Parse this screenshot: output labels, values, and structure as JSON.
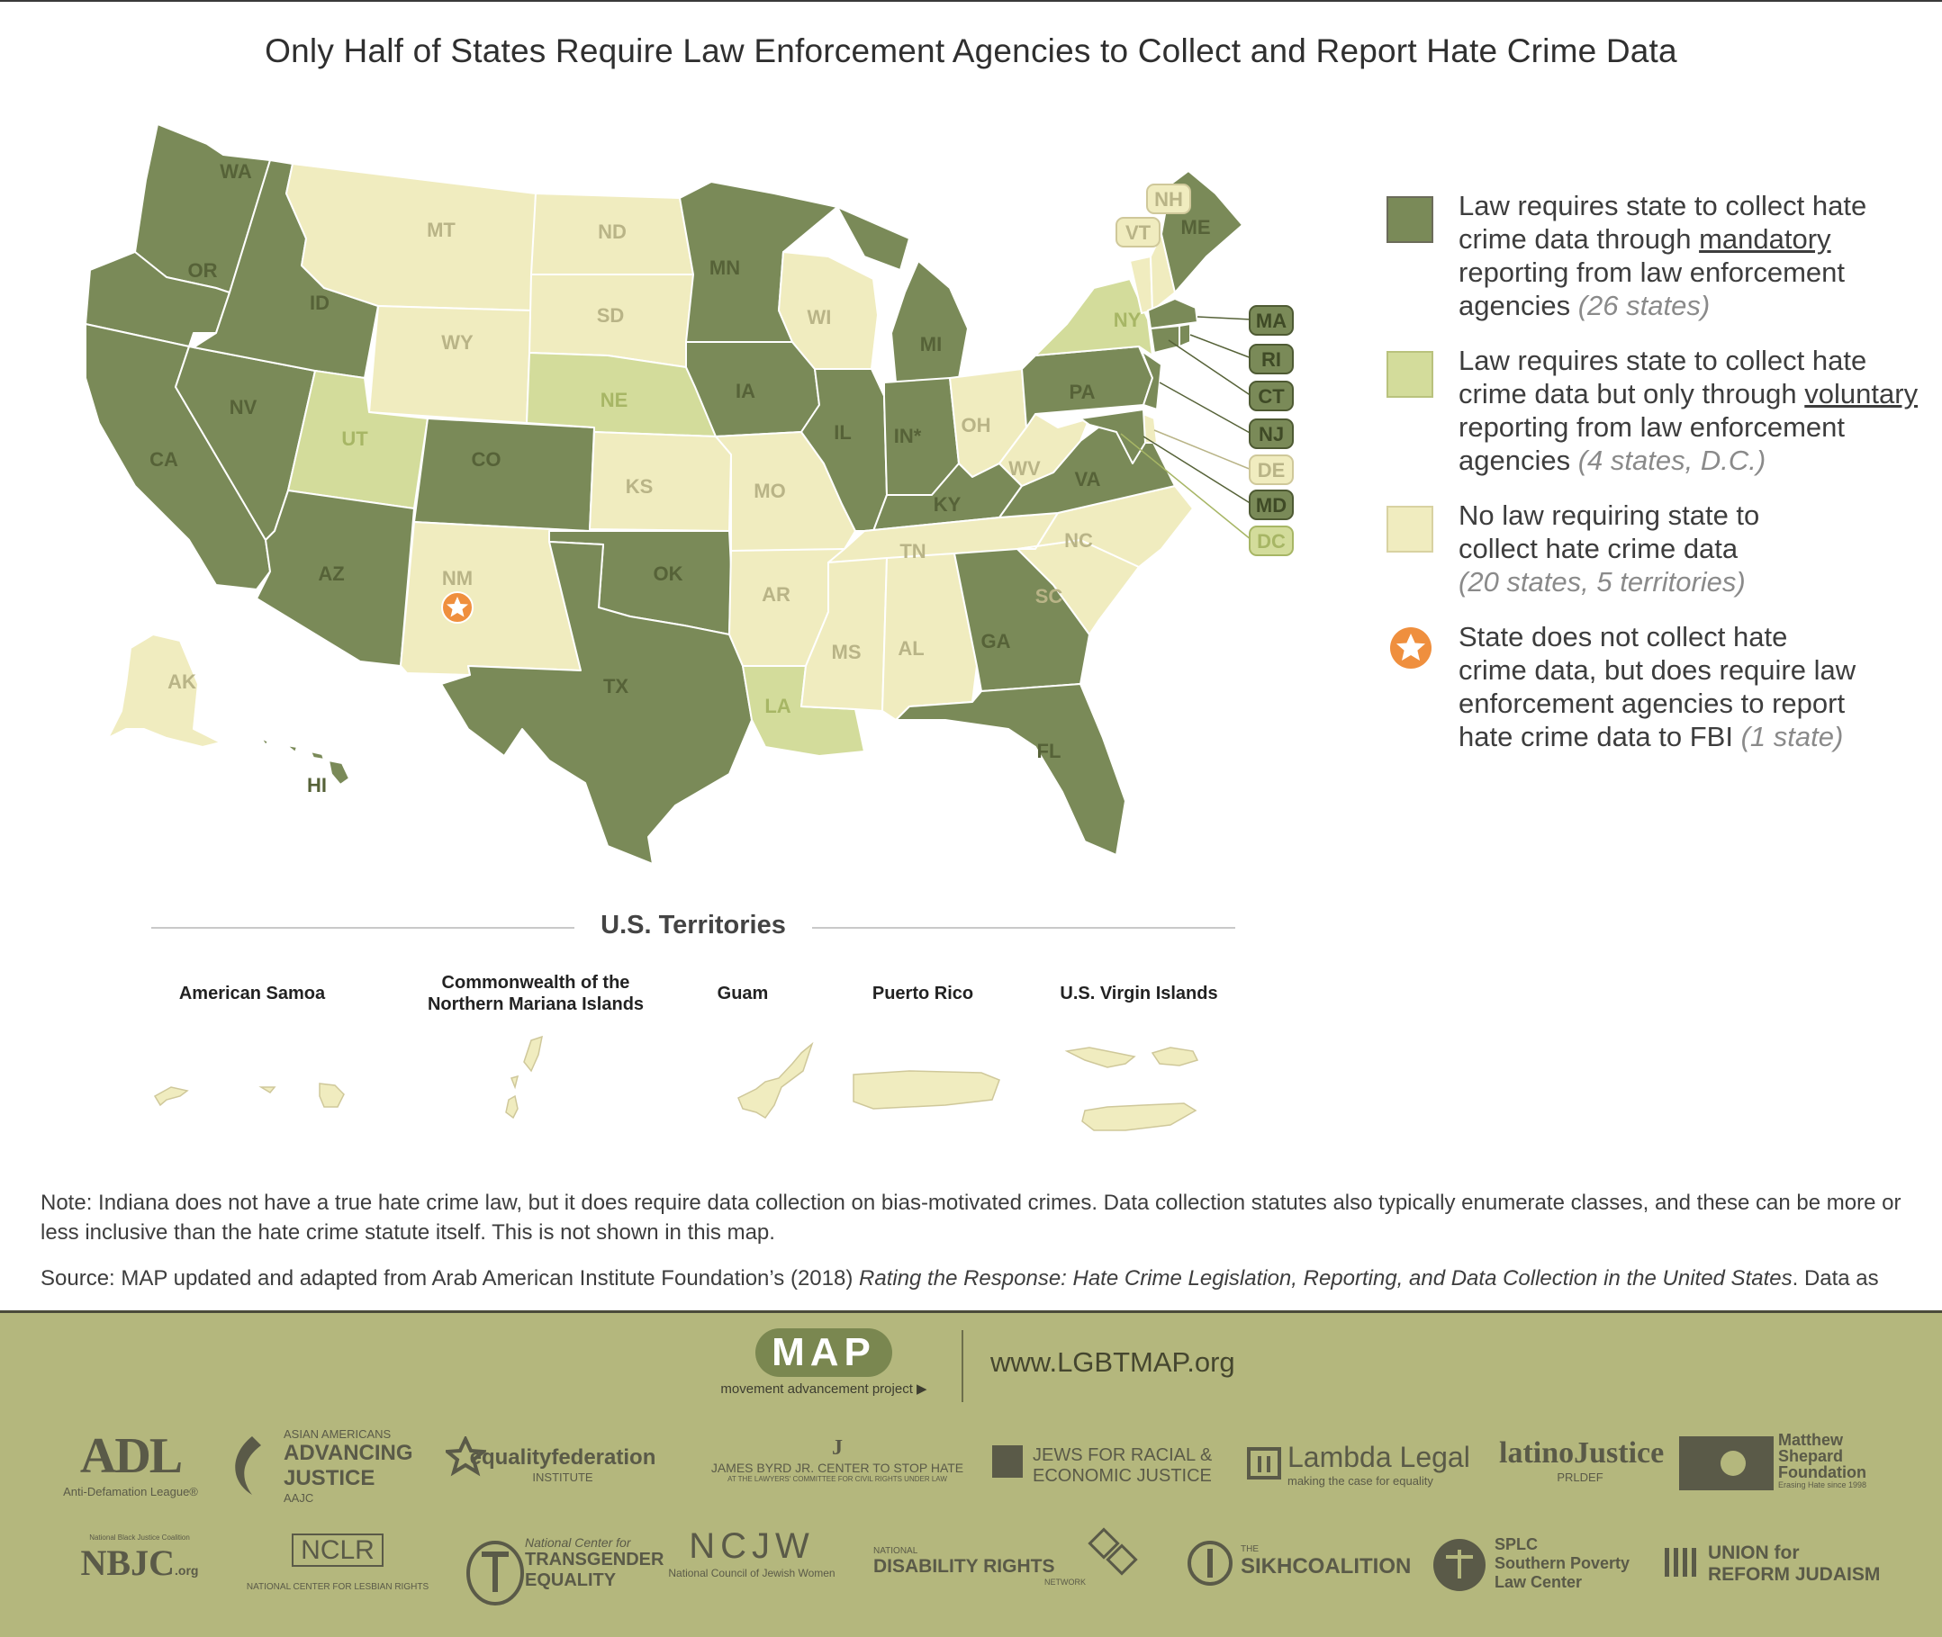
{
  "title": "Only Half of States Require Law Enforcement Agencies to Collect and Report Hate Crime Data",
  "colors": {
    "mandatory": "#7a8a58",
    "voluntary": "#d3dc9b",
    "none": "#f0ecbf",
    "star": "#ef8f3e"
  },
  "states": {
    "WA": "WA",
    "OR": "OR",
    "CA": "CA",
    "NV": "NV",
    "ID": "ID",
    "MT": "MT",
    "WY": "WY",
    "UT": "UT",
    "AZ": "AZ",
    "CO": "CO",
    "NM": "NM",
    "ND": "ND",
    "SD": "SD",
    "NE": "NE",
    "KS": "KS",
    "OK": "OK",
    "TX": "TX",
    "MN": "MN",
    "IA": "IA",
    "MO": "MO",
    "AR": "AR",
    "LA": "LA",
    "WI": "WI",
    "IL": "IL",
    "MS": "MS",
    "MI": "MI",
    "IN": "IN*",
    "KY": "KY",
    "TN": "TN",
    "AL": "AL",
    "GA": "GA",
    "FL": "FL",
    "OH": "OH",
    "WV": "WV",
    "VA": "VA",
    "NC": "NC",
    "SC": "SC",
    "PA": "PA",
    "NY": "NY",
    "VT": "VT",
    "NH": "NH",
    "ME": "ME",
    "MA": "MA",
    "RI": "RI",
    "CT": "CT",
    "NJ": "NJ",
    "DE": "DE",
    "MD": "MD",
    "DC": "DC",
    "AK": "AK",
    "HI": "HI"
  },
  "legend": [
    {
      "lines": [
        "Law requires state to collect hate",
        "crime data through "
      ],
      "underline": "mandatory",
      "rest": [
        "reporting from law enforcement",
        "agencies "
      ],
      "count": "(26 states)"
    },
    {
      "lines": [
        "Law requires state to collect hate",
        "crime data but only through "
      ],
      "underline": "voluntary",
      "rest": [
        "reporting from law enforcement",
        "agencies "
      ],
      "count": "(4 states, D.C.)"
    },
    {
      "text1": "No law requiring state to",
      "text2": "collect hate crime data",
      "count": "(20 states, 5 territories)"
    },
    {
      "text1": "State does not collect hate",
      "text2": "crime data, but does require law",
      "text3": "enforcement agencies to report",
      "text4": "hate crime data to FBI ",
      "count": "(1 state)"
    }
  ],
  "territories": {
    "heading": "U.S. Territories",
    "items": [
      "American Samoa",
      "Commonwealth of the Northern Mariana Islands",
      "Guam",
      "Puerto Rico",
      "U.S. Virgin Islands"
    ],
    "cnmi_line1": "Commonwealth of the",
    "cnmi_line2": "Northern Mariana Islands"
  },
  "note": "Note: Indiana does not have a true hate crime law, but it does require data collection on bias-motivated crimes. Data collection statutes also typically enumerate classes, and these can be more or less inclusive than the hate crime statute itself. This is not shown in this map.",
  "source_prefix": "Source: MAP updated and adapted from Arab American Institute Foundation’s (2018) ",
  "source_italic": "Rating the Response: Hate Crime Legislation, Reporting, and Data Collection in the United States",
  "source_suffix": ". Data as",
  "footer": {
    "logo": "MAP",
    "logo_sub": "movement advancement project ▶",
    "url": "www.LGBTMAP.org",
    "partners": {
      "adl": "ADL",
      "adl_sub": "Anti-Defamation League®",
      "aaj_1": "ASIAN AMERICANS",
      "aaj_2": "ADVANCING",
      "aaj_3": "JUSTICE",
      "aaj_4": "AAJC",
      "ef": "equalityfederation",
      "ef_sub": "INSTITUTE",
      "byrd": "JAMES BYRD JR. CENTER TO STOP HATE",
      "byrd_sub": "AT THE LAWYERS' COMMITTEE FOR CIVIL RIGHTS UNDER LAW",
      "jfrej_1": "JEWS FOR RACIAL &",
      "jfrej_2": "ECONOMIC JUSTICE",
      "lambda": "Lambda Legal",
      "lambda_sub": "making the case for equality",
      "lj": "latinoJustice",
      "lj_sub": "PRLDEF",
      "msf_1": "Matthew",
      "msf_2": "Shepard",
      "msf_3": "Foundation",
      "msf_sub": "Erasing Hate since 1998",
      "nbjc": "NBJC",
      "nbjc_top": "National Black Justice Coalition",
      "nbjc_org": ".org",
      "nclr": "NCLR",
      "nclr_sub": "NATIONAL CENTER FOR LESBIAN RIGHTS",
      "ncte_1": "National Center for",
      "ncte_2": "TRANSGENDER",
      "ncte_3": "EQUALITY",
      "ncjw": "NCJW",
      "ncjw_sub": "National Council of Jewish Women",
      "drn_1": "NATIONAL",
      "drn_2": "DISABILITY RIGHTS",
      "drn_3": "NETWORK",
      "sikh_1": "THE",
      "sikh_2": "SIKHCOALITION",
      "splc_1": "SPLC",
      "splc_2": "Southern Poverty",
      "splc_3": "Law Center",
      "urj_1": "UNION for",
      "urj_2": "REFORM JUDAISM"
    }
  }
}
